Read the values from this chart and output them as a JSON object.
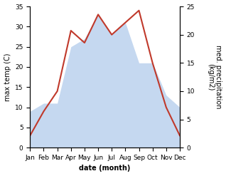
{
  "months": [
    "Jan",
    "Feb",
    "Mar",
    "Apr",
    "May",
    "Jun",
    "Jul",
    "Aug",
    "Sep",
    "Oct",
    "Nov",
    "Dec"
  ],
  "temp": [
    3,
    9,
    14,
    29,
    26,
    33,
    28,
    31,
    34,
    21,
    10,
    3
  ],
  "precip_left_scale": [
    9,
    11,
    11,
    25,
    27,
    33,
    28,
    31,
    21,
    21,
    13,
    10
  ],
  "temp_color": "#c0392b",
  "precip_color": "#c5d8f0",
  "ylabel_left": "max temp (C)",
  "ylabel_right": "med. precipitation\n(kg/m2)",
  "xlabel": "date (month)",
  "ylim_left": [
    0,
    35
  ],
  "ylim_right": [
    0,
    25
  ],
  "yticks_left": [
    0,
    5,
    10,
    15,
    20,
    25,
    30,
    35
  ],
  "yticks_right": [
    0,
    5,
    10,
    15,
    20,
    25
  ],
  "background_color": "#ffffff",
  "label_fontsize": 7,
  "tick_fontsize": 6.5
}
